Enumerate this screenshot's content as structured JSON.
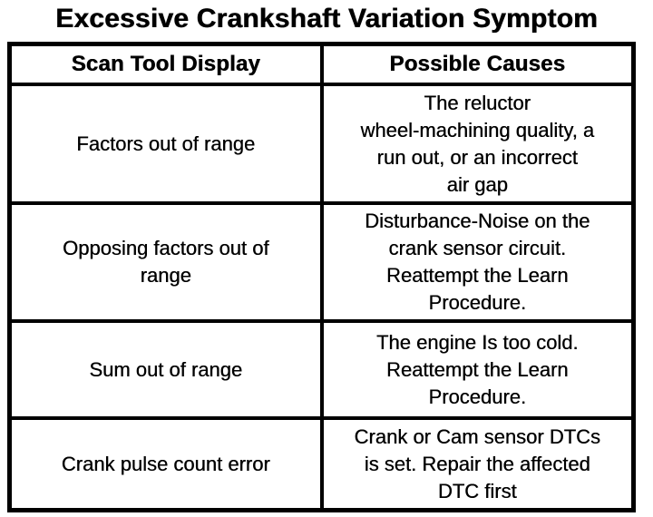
{
  "title": "Excessive Crankshaft Variation Symptom",
  "table": {
    "headers": {
      "col1": "Scan Tool Display",
      "col2": "Possible Causes"
    },
    "rows": [
      {
        "display": "Factors out of range",
        "causes": "The reluctor\nwheel-machining quality, a\nrun out, or an incorrect\nair gap"
      },
      {
        "display": "Opposing factors out of\nrange",
        "causes": "Disturbance-Noise on the\ncrank sensor circuit.\nReattempt the Learn\nProcedure."
      },
      {
        "display": "Sum out of range",
        "causes": "The engine Is too cold.\nReattempt the Learn\nProcedure."
      },
      {
        "display": "Crank pulse count error",
        "causes": "Crank or Cam sensor DTCs\nis set. Repair the affected\nDTC first"
      }
    ]
  },
  "colors": {
    "ink": "#000000",
    "paper": "#ffffff"
  }
}
